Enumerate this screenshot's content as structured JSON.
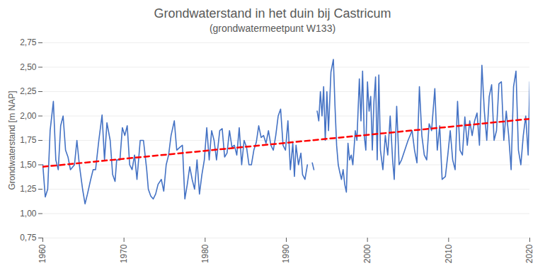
{
  "chart_data": {
    "type": "line",
    "title": "Grondwaterstand in het duin bij Castricum",
    "subtitle": "(grondwatermeetpunt W133)",
    "y_label": "Grondwaterstand [m NAP]",
    "xlim": [
      1960,
      2020
    ],
    "xticks": [
      1960,
      1970,
      1980,
      1990,
      2000,
      2010,
      2020
    ],
    "ylim": [
      0.75,
      2.75
    ],
    "yticks": [
      {
        "value": 0.75,
        "label": "0,75"
      },
      {
        "value": 1.0,
        "label": "1,00"
      },
      {
        "value": 1.25,
        "label": "1,25"
      },
      {
        "value": 1.5,
        "label": "1,50"
      },
      {
        "value": 1.75,
        "label": "1,75"
      },
      {
        "value": 2.0,
        "label": "2,00"
      },
      {
        "value": 2.25,
        "label": "2,25"
      },
      {
        "value": 2.5,
        "label": "2,50"
      },
      {
        "value": 2.75,
        "label": "2,75"
      }
    ],
    "grid": true,
    "series": [
      {
        "color": "#4472c4",
        "line_style": "solid",
        "x": [
          1960.0,
          1960.3,
          1960.6,
          1960.9,
          1961.3,
          1961.6,
          1961.9,
          1962.2,
          1962.5,
          1962.8,
          1963.1,
          1963.4,
          1963.9,
          1964.2,
          1964.5,
          1964.9,
          1965.2,
          1965.5,
          1965.9,
          1966.2,
          1966.5,
          1966.9,
          1967.3,
          1967.6,
          1967.9,
          1968.3,
          1968.6,
          1968.9,
          1969.1,
          1969.5,
          1969.8,
          1970.1,
          1970.4,
          1970.7,
          1971.0,
          1971.3,
          1971.6,
          1972.0,
          1972.4,
          1972.8,
          1973.0,
          1973.3,
          1973.6,
          1973.9,
          1974.2,
          1974.6,
          1974.9,
          1975.2,
          1975.5,
          1975.8,
          1976.2,
          1976.5,
          1976.9,
          1977.2,
          1977.5,
          1977.8,
          1978.1,
          1978.4,
          1978.7,
          1979.0,
          1979.3,
          1979.6,
          1979.9,
          1980.2,
          1980.5,
          1980.8,
          1981.1,
          1981.4,
          1981.8,
          1982.1,
          1982.4,
          1982.7,
          1983.0,
          1983.3,
          1983.6,
          1983.9,
          1984.2,
          1984.5,
          1984.8,
          1985.1,
          1985.4,
          1985.7,
          1986.0,
          1986.3,
          1986.6,
          1986.9,
          1987.2,
          1987.5,
          1987.8,
          1988.1,
          1988.4,
          1988.7,
          1989.0,
          1989.3,
          1989.6,
          1989.9,
          1990.2,
          1990.5,
          1990.8,
          1991.0,
          1991.2,
          1991.5,
          1991.8,
          1992.0,
          1992.3,
          1992.6,
          1992.9,
          1993.2,
          1993.4,
          1993.6,
          1993.8,
          1994.0,
          1994.2,
          1994.4,
          1994.6,
          1994.8,
          1995.0,
          1995.2,
          1995.5,
          1995.8,
          1996.0,
          1996.2,
          1996.4,
          1996.6,
          1996.8,
          1997.0,
          1997.2,
          1997.4,
          1997.6,
          1997.8,
          1998.0,
          1998.2,
          1998.5,
          1998.7,
          1999.0,
          1999.2,
          1999.4,
          1999.6,
          1999.8,
          2000.0,
          2000.2,
          2000.4,
          2000.6,
          2000.8,
          2001.0,
          2001.2,
          2001.4,
          2001.6,
          2001.9,
          2002.2,
          2002.5,
          2002.8,
          2003.1,
          2003.3,
          2003.6,
          2003.9,
          2004.2,
          2004.6,
          2005.0,
          2005.5,
          2005.8,
          2006.1,
          2006.4,
          2006.7,
          2007.0,
          2007.3,
          2007.6,
          2007.9,
          2008.3,
          2008.6,
          2008.9,
          2009.2,
          2009.6,
          2009.9,
          2010.2,
          2010.5,
          2010.8,
          2011.1,
          2011.4,
          2011.7,
          2012.0,
          2012.3,
          2012.6,
          2012.9,
          2013.2,
          2013.5,
          2013.8,
          2014.1,
          2014.4,
          2014.7,
          2015.0,
          2015.3,
          2015.6,
          2015.9,
          2016.2,
          2016.5,
          2016.8,
          2017.1,
          2017.4,
          2017.7,
          2018.0,
          2018.3,
          2018.6,
          2018.9,
          2019.2,
          2019.5,
          2019.8,
          2020.0
        ],
        "values": [
          1.5,
          1.17,
          1.25,
          1.85,
          2.15,
          1.55,
          1.45,
          1.9,
          2.0,
          1.65,
          1.58,
          1.45,
          1.5,
          1.75,
          1.5,
          1.25,
          1.1,
          1.2,
          1.35,
          1.45,
          1.45,
          1.75,
          2.01,
          1.55,
          1.93,
          1.75,
          1.4,
          1.33,
          1.55,
          1.55,
          1.88,
          1.8,
          1.9,
          1.5,
          1.45,
          1.6,
          1.35,
          1.75,
          1.75,
          1.45,
          1.25,
          1.18,
          1.15,
          1.2,
          1.3,
          1.35,
          1.23,
          1.5,
          1.6,
          1.8,
          1.95,
          1.65,
          1.68,
          1.7,
          1.15,
          1.3,
          1.48,
          1.35,
          1.25,
          1.55,
          1.2,
          1.4,
          1.55,
          1.88,
          1.55,
          1.85,
          1.75,
          1.55,
          1.85,
          1.87,
          1.58,
          1.62,
          1.85,
          1.68,
          1.7,
          1.6,
          1.88,
          1.5,
          1.75,
          1.68,
          1.5,
          1.5,
          1.65,
          1.73,
          1.9,
          1.78,
          1.8,
          1.72,
          1.85,
          1.7,
          1.65,
          1.8,
          2.0,
          2.07,
          1.7,
          1.65,
          1.95,
          1.45,
          1.72,
          1.38,
          1.7,
          1.5,
          1.62,
          1.4,
          1.35,
          1.5,
          null,
          1.52,
          1.45,
          null,
          2.05,
          1.95,
          2.25,
          2.0,
          2.3,
          1.75,
          2.25,
          1.85,
          2.45,
          2.58,
          2.1,
          1.7,
          1.5,
          1.42,
          1.35,
          1.45,
          1.3,
          1.22,
          1.72,
          1.55,
          1.6,
          1.5,
          1.85,
          1.75,
          2.38,
          1.95,
          2.46,
          1.8,
          1.65,
          2.35,
          2.05,
          2.2,
          1.65,
          2.15,
          2.4,
          1.55,
          2.42,
          1.65,
          1.45,
          1.8,
          1.6,
          2.0,
          1.55,
          1.35,
          2.1,
          1.5,
          1.55,
          1.65,
          1.75,
          1.85,
          1.65,
          1.52,
          2.3,
          1.8,
          1.6,
          1.55,
          1.92,
          1.85,
          2.28,
          1.65,
          1.9,
          1.35,
          1.38,
          1.6,
          1.85,
          1.55,
          1.45,
          2.15,
          1.65,
          1.6,
          1.99,
          1.7,
          1.95,
          1.8,
          1.95,
          2.03,
          1.7,
          2.52,
          2.05,
          1.75,
          2.2,
          2.32,
          1.75,
          1.85,
          2.33,
          2.35,
          1.75,
          2.05,
          1.8,
          1.45,
          2.3,
          2.46,
          1.65,
          1.5,
          1.8,
          2.0,
          1.6,
          2.35
        ]
      },
      {
        "color": "#ff0000",
        "line_style": "dashed",
        "x": [
          1960,
          2020
        ],
        "values": [
          1.48,
          1.97
        ]
      }
    ]
  }
}
